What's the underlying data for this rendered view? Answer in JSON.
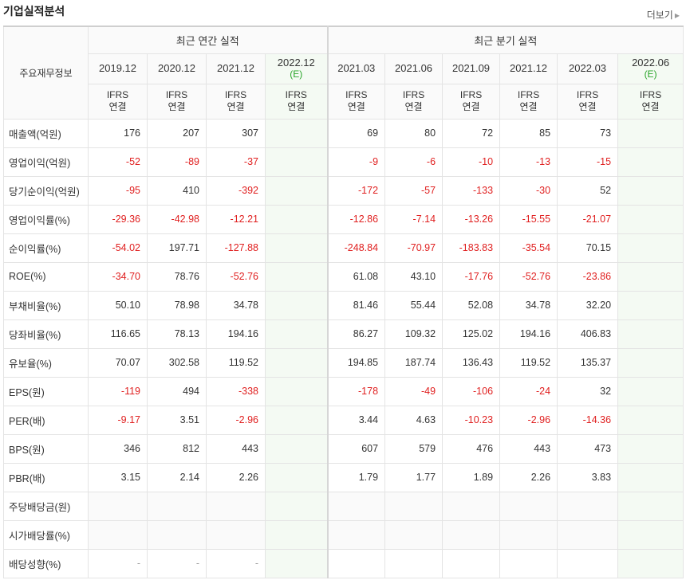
{
  "title": "기업실적분석",
  "more_label": "더보기",
  "row_header": "주요재무정보",
  "annual_title": "최근 연간 실적",
  "quarter_title": "최근 분기 실적",
  "annual_periods": [
    {
      "date": "2019.12",
      "est": "",
      "l1": "IFRS",
      "l2": "연결"
    },
    {
      "date": "2020.12",
      "est": "",
      "l1": "IFRS",
      "l2": "연결"
    },
    {
      "date": "2021.12",
      "est": "",
      "l1": "IFRS",
      "l2": "연결"
    },
    {
      "date": "2022.12",
      "est": "(E)",
      "l1": "IFRS",
      "l2": "연결"
    }
  ],
  "quarter_periods": [
    {
      "date": "2021.03",
      "est": "",
      "l1": "IFRS",
      "l2": "연결"
    },
    {
      "date": "2021.06",
      "est": "",
      "l1": "IFRS",
      "l2": "연결"
    },
    {
      "date": "2021.09",
      "est": "",
      "l1": "IFRS",
      "l2": "연결"
    },
    {
      "date": "2021.12",
      "est": "",
      "l1": "IFRS",
      "l2": "연결"
    },
    {
      "date": "2022.03",
      "est": "",
      "l1": "IFRS",
      "l2": "연결"
    },
    {
      "date": "2022.06",
      "est": "(E)",
      "l1": "IFRS",
      "l2": "연결"
    }
  ],
  "rows": [
    {
      "label": "매출액(억원)",
      "values": [
        "176",
        "207",
        "307",
        "",
        "69",
        "80",
        "72",
        "85",
        "73",
        ""
      ]
    },
    {
      "label": "영업이익(억원)",
      "values": [
        "-52",
        "-89",
        "-37",
        "",
        "-9",
        "-6",
        "-10",
        "-13",
        "-15",
        ""
      ]
    },
    {
      "label": "당기순이익(억원)",
      "values": [
        "-95",
        "410",
        "-392",
        "",
        "-172",
        "-57",
        "-133",
        "-30",
        "52",
        ""
      ]
    },
    {
      "label": "영업이익률(%)",
      "values": [
        "-29.36",
        "-42.98",
        "-12.21",
        "",
        "-12.86",
        "-7.14",
        "-13.26",
        "-15.55",
        "-21.07",
        ""
      ]
    },
    {
      "label": "순이익률(%)",
      "values": [
        "-54.02",
        "197.71",
        "-127.88",
        "",
        "-248.84",
        "-70.97",
        "-183.83",
        "-35.54",
        "70.15",
        ""
      ]
    },
    {
      "label": "ROE(%)",
      "values": [
        "-34.70",
        "78.76",
        "-52.76",
        "",
        "61.08",
        "43.10",
        "-17.76",
        "-52.76",
        "-23.86",
        ""
      ]
    },
    {
      "label": "부채비율(%)",
      "values": [
        "50.10",
        "78.98",
        "34.78",
        "",
        "81.46",
        "55.44",
        "52.08",
        "34.78",
        "32.20",
        ""
      ]
    },
    {
      "label": "당좌비율(%)",
      "values": [
        "116.65",
        "78.13",
        "194.16",
        "",
        "86.27",
        "109.32",
        "125.02",
        "194.16",
        "406.83",
        ""
      ]
    },
    {
      "label": "유보율(%)",
      "values": [
        "70.07",
        "302.58",
        "119.52",
        "",
        "194.85",
        "187.74",
        "136.43",
        "119.52",
        "135.37",
        ""
      ]
    },
    {
      "label": "EPS(원)",
      "values": [
        "-119",
        "494",
        "-338",
        "",
        "-178",
        "-49",
        "-106",
        "-24",
        "32",
        ""
      ]
    },
    {
      "label": "PER(배)",
      "values": [
        "-9.17",
        "3.51",
        "-2.96",
        "",
        "3.44",
        "4.63",
        "-10.23",
        "-2.96",
        "-14.36",
        ""
      ]
    },
    {
      "label": "BPS(원)",
      "values": [
        "346",
        "812",
        "443",
        "",
        "607",
        "579",
        "476",
        "443",
        "473",
        ""
      ]
    },
    {
      "label": "PBR(배)",
      "values": [
        "3.15",
        "2.14",
        "2.26",
        "",
        "1.79",
        "1.77",
        "1.89",
        "2.26",
        "3.83",
        ""
      ]
    },
    {
      "label": "주당배당금(원)",
      "values": [
        "",
        "",
        "",
        "",
        "",
        "",
        "",
        "",
        "",
        ""
      ]
    },
    {
      "label": "시가배당률(%)",
      "values": [
        "",
        "",
        "",
        "",
        "",
        "",
        "",
        "",
        "",
        ""
      ]
    },
    {
      "label": "배당성향(%)",
      "values": [
        "-",
        "-",
        "-",
        "",
        "",
        "",
        "",
        "",
        "",
        ""
      ]
    }
  ],
  "colors": {
    "negative": "#e02020",
    "ifrs": "#e85a10",
    "estimate": "#2aa52a",
    "estimate_bg": "#f4faf3"
  }
}
